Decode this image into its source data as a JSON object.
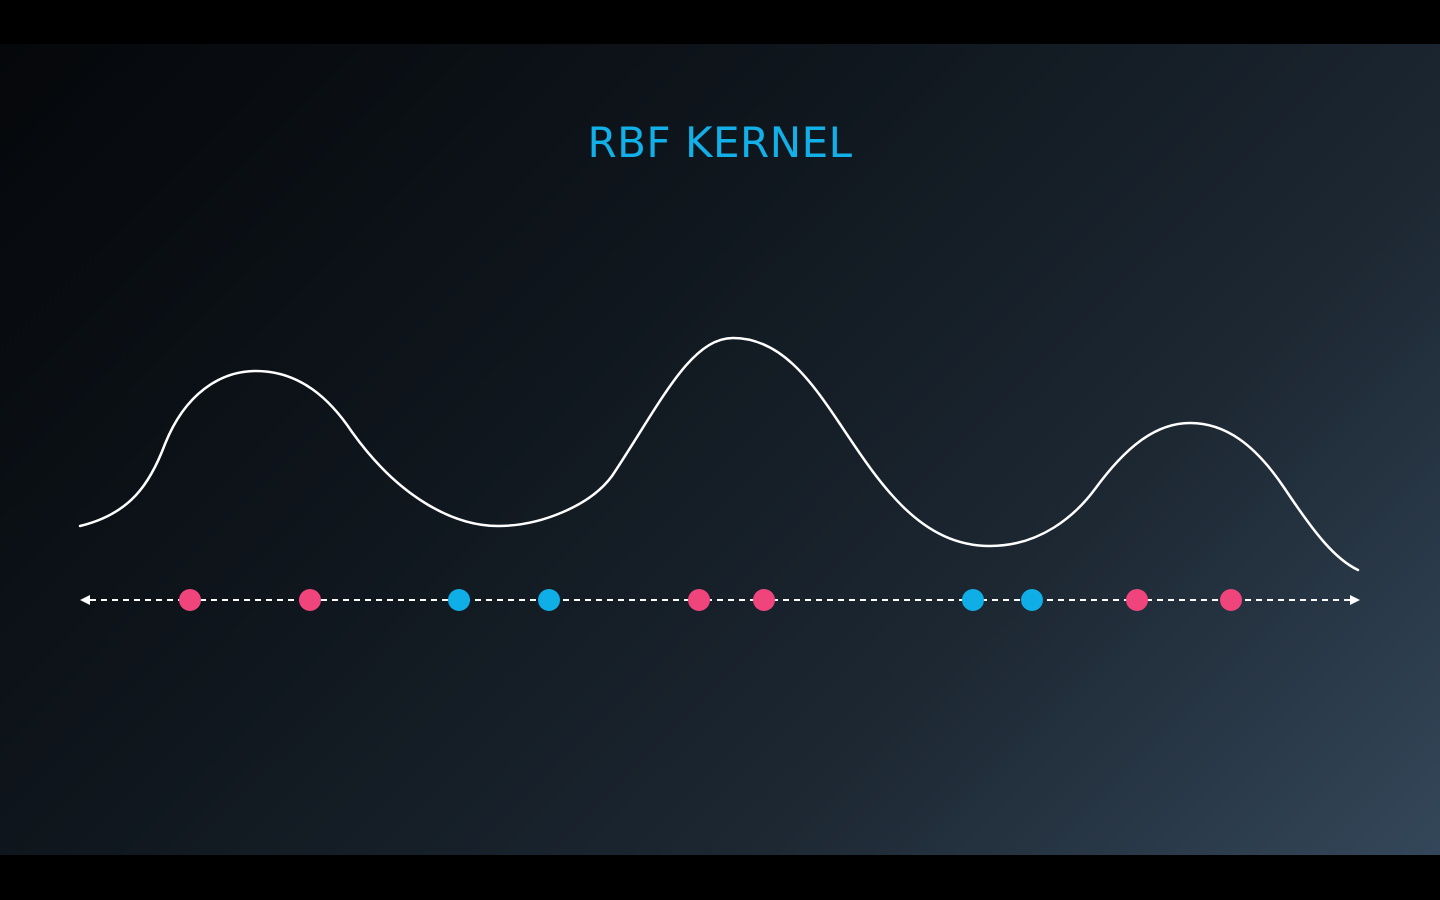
{
  "title": "RBF KERNEL",
  "colors": {
    "title": "#12b0e8",
    "curve": "#ffffff",
    "axis": "#ffffff",
    "class_pink": "#f0447c",
    "class_blue": "#10aee6"
  },
  "points": [
    {
      "class": "pink"
    },
    {
      "class": "pink"
    },
    {
      "class": "blue"
    },
    {
      "class": "blue"
    },
    {
      "class": "pink"
    },
    {
      "class": "pink"
    },
    {
      "class": "blue"
    },
    {
      "class": "blue"
    },
    {
      "class": "pink"
    },
    {
      "class": "pink"
    }
  ]
}
